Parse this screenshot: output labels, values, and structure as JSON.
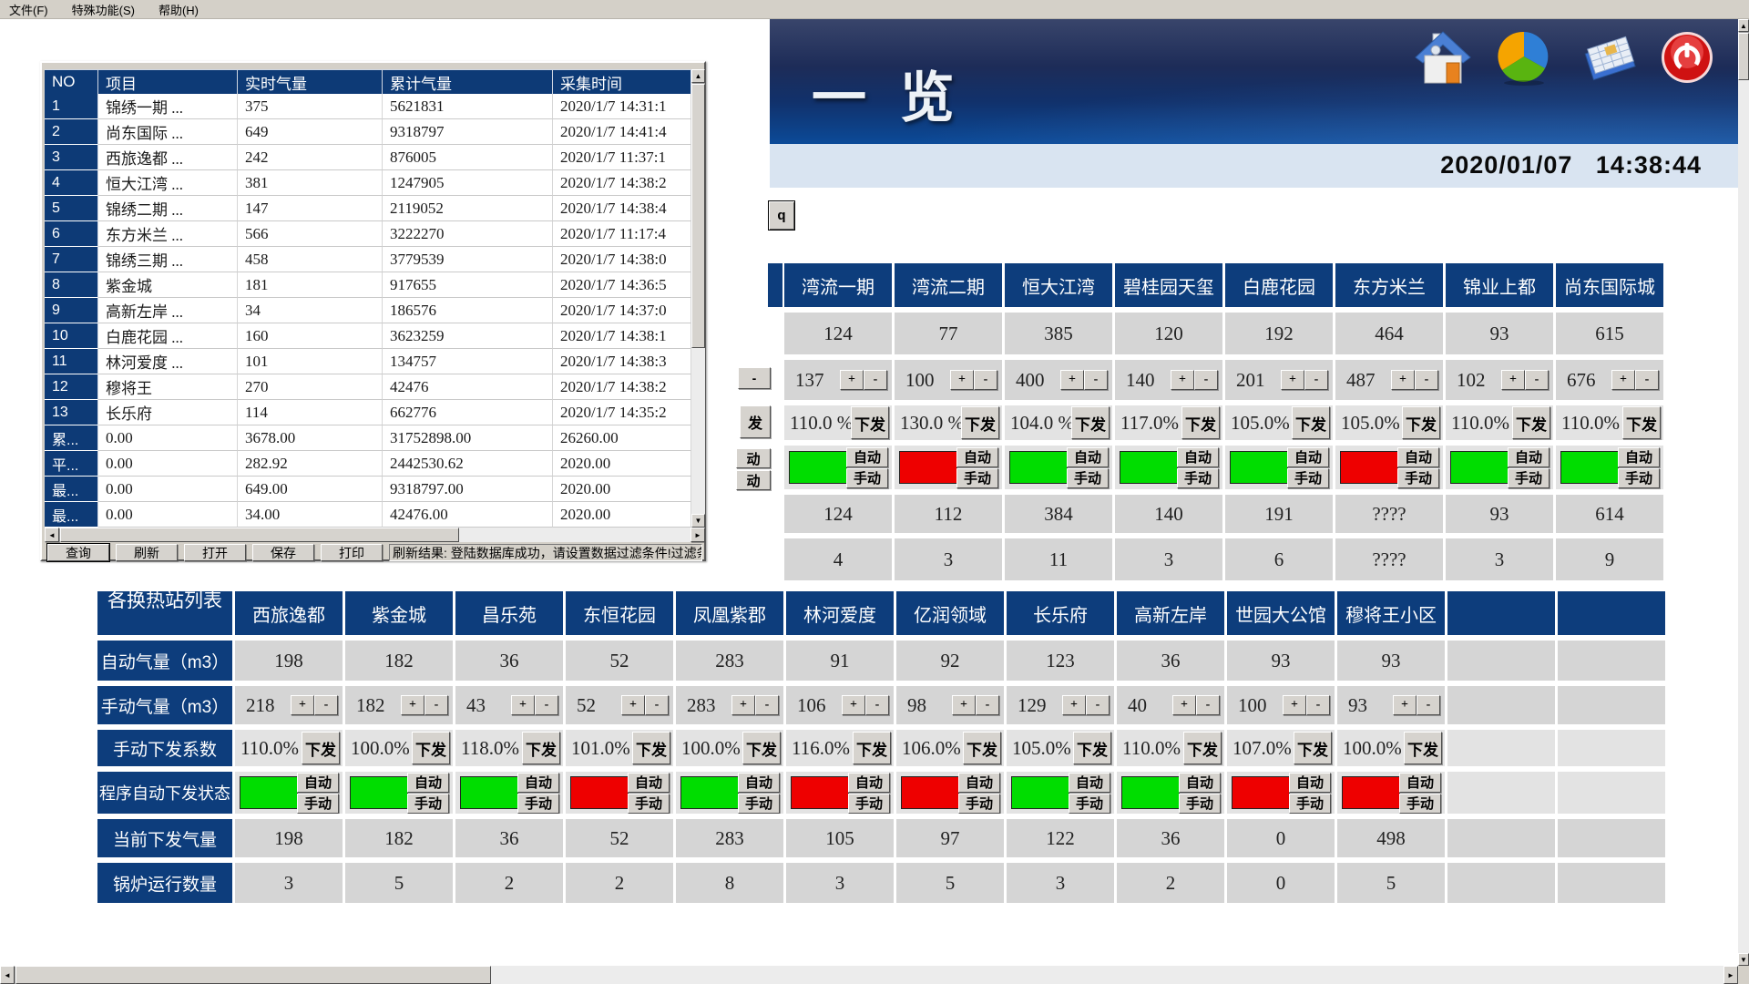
{
  "menu": {
    "items": [
      "文件(F)",
      "特殊功能(S)",
      "帮助(H)"
    ]
  },
  "banner": {
    "title": "一 览",
    "date": "2020/01/07",
    "time": "14:38:44",
    "icons": [
      "home-icon",
      "pie-chart-icon",
      "calendar-icon",
      "power-icon"
    ]
  },
  "side_button": {
    "label": "q"
  },
  "controls": {
    "plus": "+",
    "minus": "-",
    "send": "下发",
    "auto": "自动",
    "manual": "手动"
  },
  "colors": {
    "green": "#00dd00",
    "red": "#ee0000",
    "header_navy": "#0d3d7c"
  },
  "popup": {
    "columns": [
      "NO",
      "项目",
      "实时气量",
      "累计气量",
      "采集时间"
    ],
    "rows": [
      [
        "1",
        "锦绣一期  ...",
        "375",
        "5621831",
        "2020/1/7 14:31:1"
      ],
      [
        "2",
        "尚东国际  ...",
        "649",
        "9318797",
        "2020/1/7 14:41:4"
      ],
      [
        "3",
        "西旅逸都  ...",
        "242",
        "876005",
        "2020/1/7 11:37:1"
      ],
      [
        "4",
        "恒大江湾  ...",
        "381",
        "1247905",
        "2020/1/7 14:38:2"
      ],
      [
        "5",
        "锦绣二期  ...",
        "147",
        "2119052",
        "2020/1/7 14:38:4"
      ],
      [
        "6",
        "东方米兰  ...",
        "566",
        "3222270",
        "2020/1/7 11:17:4"
      ],
      [
        "7",
        "锦绣三期  ...",
        "458",
        "3779539",
        "2020/1/7 14:38:0"
      ],
      [
        "8",
        "紫金城",
        "181",
        "917655",
        "2020/1/7 14:36:5"
      ],
      [
        "9",
        "高新左岸  ...",
        "34",
        "186576",
        "2020/1/7 14:37:0"
      ],
      [
        "10",
        "白鹿花园  ...",
        "160",
        "3623259",
        "2020/1/7 14:38:1"
      ],
      [
        "11",
        "林河爱度  ...",
        "101",
        "134757",
        "2020/1/7 14:38:3"
      ],
      [
        "12",
        "穆将王",
        "270",
        "42476",
        "2020/1/7 14:38:2"
      ],
      [
        "13",
        "长乐府",
        "114",
        "662776",
        "2020/1/7 14:35:2"
      ]
    ],
    "summary": [
      [
        "累...",
        "0.00",
        "3678.00",
        "31752898.00",
        "26260.00"
      ],
      [
        "平...",
        "0.00",
        "282.92",
        "2442530.62",
        "2020.00"
      ],
      [
        "最...",
        "0.00",
        "649.00",
        "9318797.00",
        "2020.00"
      ],
      [
        "最...",
        "0.00",
        "34.00",
        "42476.00",
        "2020.00"
      ]
    ],
    "buttons": [
      "查询",
      "刷新",
      "打开",
      "保存",
      "打印"
    ],
    "status_text": "刷新结果: 登陆数据库成功，请设置数据过滤条件!过滤条件: 无过滤"
  },
  "table1": {
    "stations": [
      "湾流一期",
      "湾流二期",
      "恒大江湾",
      "碧桂园天玺",
      "白鹿花园",
      "东方米兰",
      "锦业上都",
      "尚东国际城"
    ],
    "auto": [
      "124",
      "77",
      "385",
      "120",
      "192",
      "464",
      "93",
      "615"
    ],
    "manual": [
      "137",
      "100",
      "400",
      "140",
      "201",
      "487",
      "102",
      "676"
    ],
    "coeff": [
      "110.0 %",
      "130.0 %",
      "104.0 %",
      "117.0%",
      "105.0%",
      "105.0%",
      "110.0%",
      "110.0%"
    ],
    "status": [
      "green",
      "red",
      "green",
      "green",
      "green",
      "red",
      "green",
      "green"
    ],
    "current": [
      "124",
      "112",
      "384",
      "140",
      "191",
      "????",
      "93",
      "614"
    ],
    "boilers": [
      "4",
      "3",
      "11",
      "3",
      "6",
      "????",
      "3",
      "9"
    ],
    "hidden_fragments": {
      "minus": "-",
      "send_part": "发",
      "auto_part": "动",
      "manual_part": "动"
    }
  },
  "table2": {
    "corner": "各换热站列表",
    "row_labels": [
      "自动气量（m3）",
      "手动气量（m3）",
      "手动下发系数",
      "程序自动下发状态",
      "当前下发气量",
      "锅炉运行数量"
    ],
    "stations": [
      "西旅逸都",
      "紫金城",
      "昌乐苑",
      "东恒花园",
      "凤凰紫郡",
      "林河爱度",
      "亿润领域",
      "长乐府",
      "高新左岸",
      "世园大公馆",
      "穆将王小区"
    ],
    "auto": [
      "198",
      "182",
      "36",
      "52",
      "283",
      "91",
      "92",
      "123",
      "36",
      "93",
      "93"
    ],
    "manual": [
      "218",
      "182",
      "43",
      "52",
      "283",
      "106",
      "98",
      "129",
      "40",
      "100",
      "93"
    ],
    "coeff": [
      "110.0%",
      "100.0%",
      "118.0%",
      "101.0%",
      "100.0%",
      "116.0%",
      "106.0%",
      "105.0%",
      "110.0%",
      "107.0%",
      "100.0%"
    ],
    "status": [
      "green",
      "green",
      "green",
      "red",
      "green",
      "red",
      "red",
      "green",
      "green",
      "red",
      "red"
    ],
    "current": [
      "198",
      "182",
      "36",
      "52",
      "283",
      "105",
      "97",
      "122",
      "36",
      "0",
      "498"
    ],
    "boilers": [
      "3",
      "5",
      "2",
      "2",
      "8",
      "3",
      "5",
      "3",
      "2",
      "0",
      "5"
    ]
  }
}
